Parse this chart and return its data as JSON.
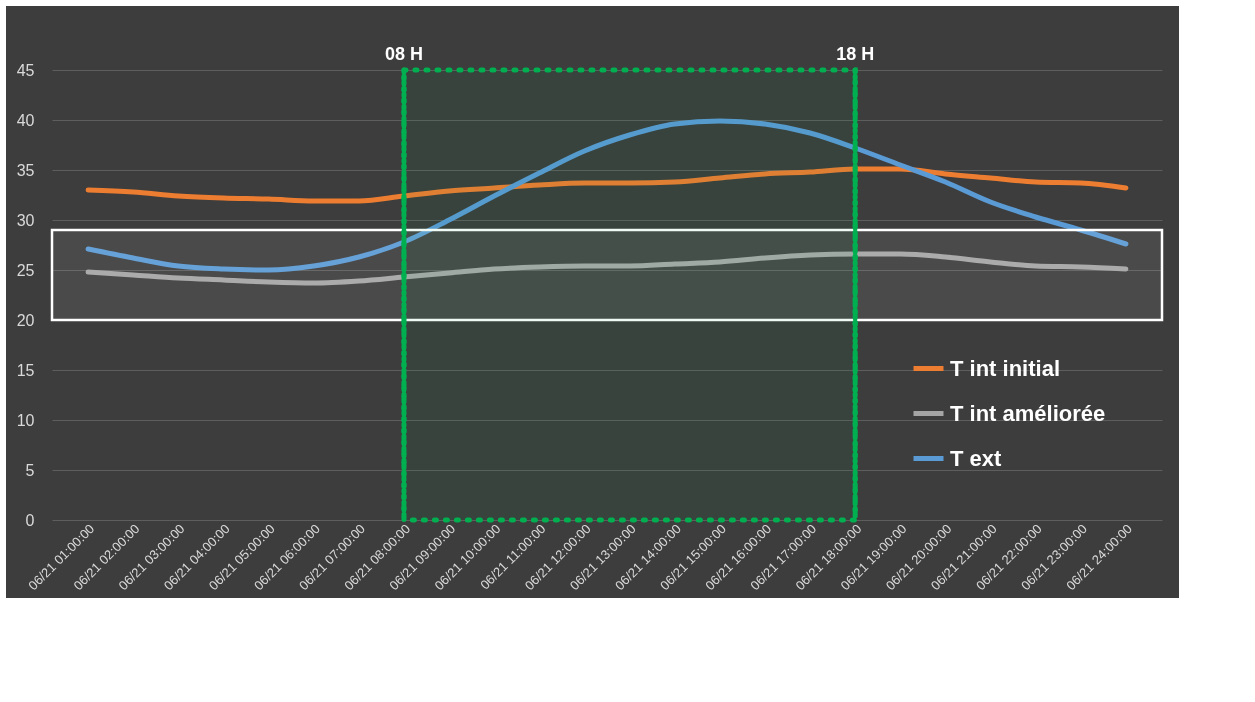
{
  "chart_data": {
    "type": "line",
    "categories": [
      "06/21 01:00:00",
      "06/21 02:00:00",
      "06/21 03:00:00",
      "06/21 04:00:00",
      "06/21 05:00:00",
      "06/21 06:00:00",
      "06/21 07:00:00",
      "06/21 08:00:00",
      "06/21 09:00:00",
      "06/21 10:00:00",
      "06/21 11:00:00",
      "06/21 12:00:00",
      "06/21 13:00:00",
      "06/21 14:00:00",
      "06/21 15:00:00",
      "06/21 16:00:00",
      "06/21 17:00:00",
      "06/21 18:00:00",
      "06/21 19:00:00",
      "06/21 20:00:00",
      "06/21 21:00:00",
      "06/21 22:00:00",
      "06/21 23:00:00",
      "06/21 24:00:00"
    ],
    "series": [
      {
        "name": "T int  initial",
        "color": "#ed7d31",
        "values": [
          33.0,
          32.8,
          32.4,
          32.2,
          32.1,
          31.9,
          31.9,
          32.4,
          32.9,
          33.2,
          33.5,
          33.7,
          33.7,
          33.8,
          34.2,
          34.6,
          34.8,
          35.1,
          35.1,
          34.6,
          34.2,
          33.8,
          33.7,
          33.2
        ]
      },
      {
        "name": "T int  améliorée",
        "color": "#a5a5a5",
        "values": [
          24.8,
          24.5,
          24.2,
          24.0,
          23.8,
          23.7,
          23.9,
          24.3,
          24.7,
          25.1,
          25.3,
          25.4,
          25.4,
          25.6,
          25.8,
          26.2,
          26.5,
          26.6,
          26.6,
          26.3,
          25.8,
          25.4,
          25.3,
          25.1
        ]
      },
      {
        "name": "T ext",
        "color": "#5b9bd5",
        "values": [
          27.1,
          26.2,
          25.4,
          25.1,
          25.0,
          25.4,
          26.3,
          27.8,
          30.0,
          32.4,
          34.7,
          36.9,
          38.5,
          39.6,
          39.9,
          39.6,
          38.7,
          37.2,
          35.5,
          33.8,
          31.8,
          30.3,
          29.0,
          27.6
        ]
      }
    ],
    "ylim": [
      0,
      45
    ],
    "yticks": [
      0,
      5,
      10,
      15,
      20,
      25,
      30,
      35,
      40,
      45
    ],
    "grid": "y",
    "legend": "bottom right",
    "line_style": "solid",
    "marker": "none",
    "bands": [
      {
        "axis": "y",
        "from": 20,
        "to": 29,
        "color": "#ffffff"
      },
      {
        "axis": "x",
        "from": "06/21 08:00:00",
        "to": "06/21 18:00:00",
        "color": "#00b050"
      }
    ],
    "ref_lines": [
      {
        "axis": "x",
        "value": "06/21 08:00:00",
        "label": "08 H",
        "color": "#00b050",
        "line_style": "dotted"
      },
      {
        "axis": "x",
        "value": "06/21 18:00:00",
        "label": "18 H",
        "color": "#00b050",
        "line_style": "dotted"
      }
    ]
  }
}
